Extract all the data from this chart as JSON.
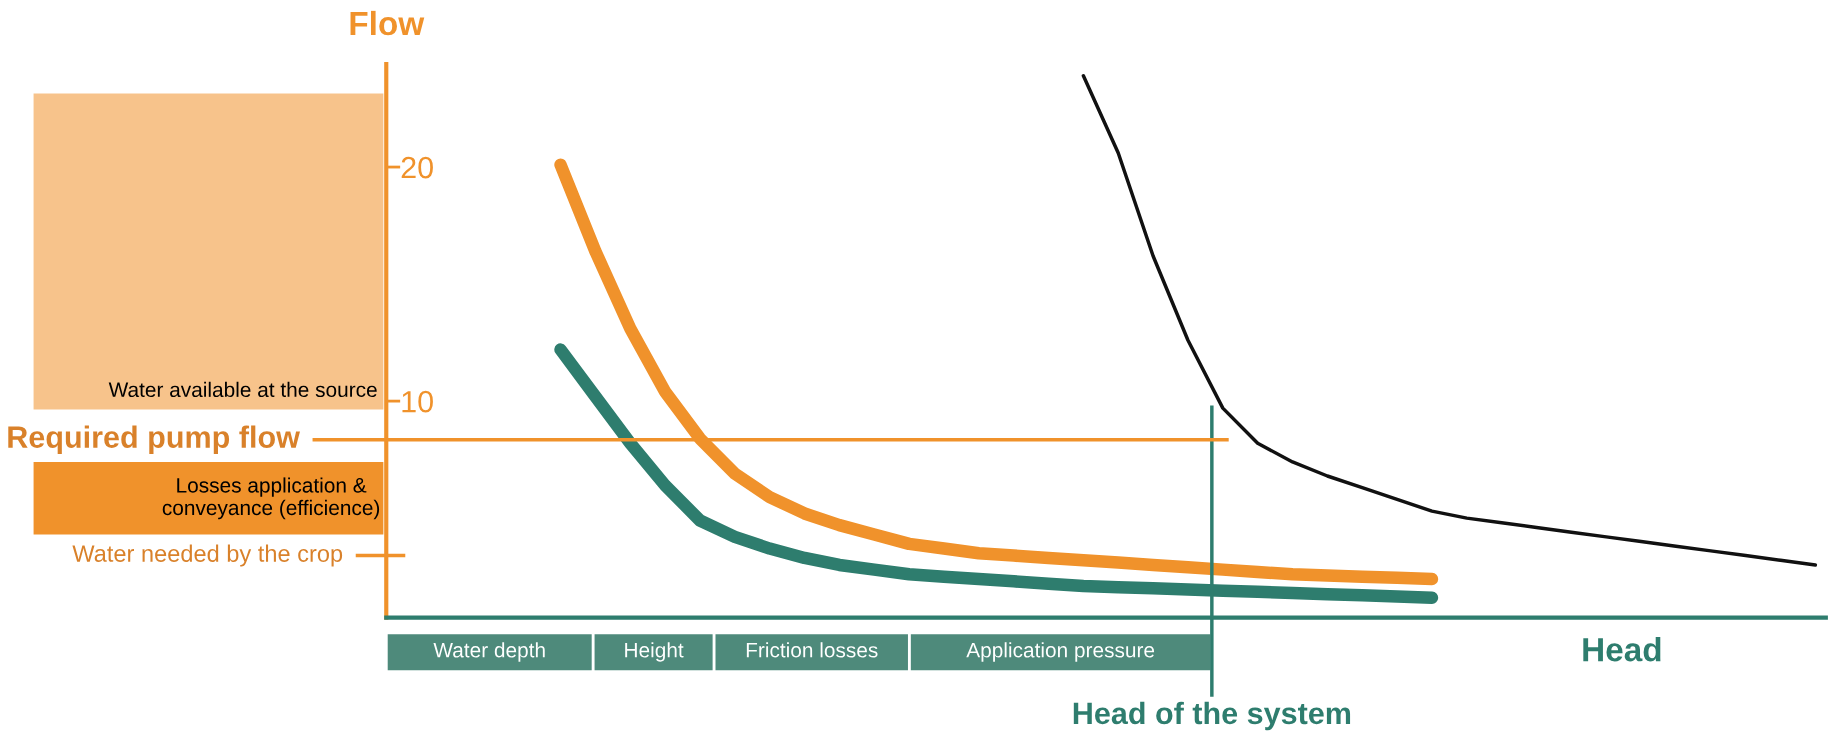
{
  "chart_data": {
    "type": "line",
    "xlabel": "Head",
    "ylabel": "Flow",
    "categories": [
      null,
      null,
      null,
      null,
      null,
      null,
      null,
      null,
      null,
      null,
      null,
      null,
      null,
      null,
      null,
      null,
      null,
      null,
      null,
      null,
      null,
      null,
      null,
      null,
      null,
      null,
      null,
      null,
      null,
      null,
      null,
      null,
      null,
      null,
      null,
      null,
      null,
      null,
      null,
      null,
      null,
      null
    ],
    "series": [
      {
        "color": "#f0922b",
        "values": [
          null,
          null,
          null,
          null,
          null,
          20.1,
          16.4,
          13.1,
          10.4,
          8.4,
          6.9,
          5.9,
          5.2,
          4.7,
          4.3,
          3.9,
          3.7,
          3.5,
          3.4,
          3.3,
          3.2,
          3.1,
          3.0,
          2.9,
          2.8,
          2.7,
          2.6,
          2.55,
          2.5,
          2.45,
          2.4,
          null,
          null,
          null,
          null,
          null,
          null,
          null,
          null,
          null,
          null,
          null
        ]
      },
      {
        "color": "#2e7d6e",
        "values": [
          null,
          null,
          null,
          null,
          null,
          12.2,
          10.2,
          8.2,
          6.4,
          4.9,
          4.2,
          3.7,
          3.3,
          3.0,
          2.8,
          2.6,
          2.5,
          2.4,
          2.3,
          2.2,
          2.1,
          2.05,
          2.0,
          1.95,
          1.9,
          1.85,
          1.8,
          1.75,
          1.7,
          1.65,
          1.6,
          null,
          null,
          null,
          null,
          null,
          null,
          null,
          null,
          null,
          null,
          null
        ]
      },
      {
        "color": "#111111",
        "values": [
          null,
          null,
          null,
          null,
          null,
          null,
          null,
          null,
          null,
          null,
          null,
          null,
          null,
          null,
          null,
          null,
          null,
          null,
          null,
          null,
          23.9,
          20.6,
          16.2,
          12.6,
          9.7,
          8.2,
          7.4,
          6.8,
          6.3,
          5.8,
          5.3,
          5.0,
          4.8,
          4.6,
          4.4,
          4.2,
          4.0,
          3.8,
          3.6,
          3.4,
          3.2,
          3.0
        ]
      }
    ],
    "ylim": [
      0.75,
      24.4
    ],
    "yticks": [
      10,
      20
    ],
    "ref_lines": [
      {
        "axis": "y",
        "value": 8.35,
        "label": "Required pump flow",
        "color": "#f0922b"
      },
      {
        "axis": "y",
        "value": 3.4,
        "label": "Water needed by the crop",
        "color": "#f0922b"
      }
    ],
    "annotations": [
      "Water available at the source",
      "Losses application &\nconveyance (efficience)",
      "Water depth",
      "Height",
      "Friction losses",
      "Application pressure",
      "Head of the system"
    ],
    "grid": false,
    "legend": false,
    "tick_labels": "y"
  }
}
